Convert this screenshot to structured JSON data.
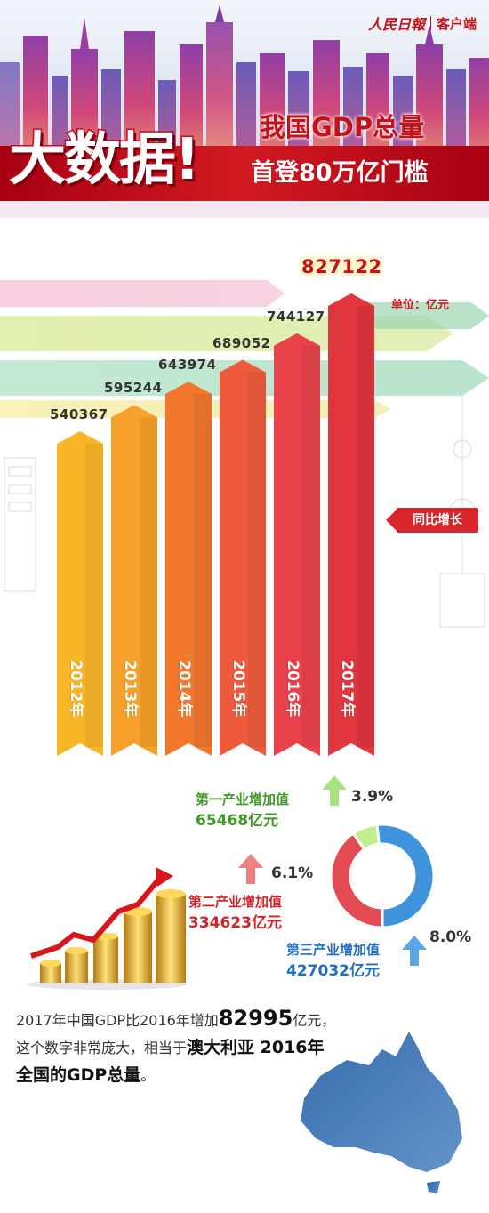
{
  "header": {
    "brand": "人民日報",
    "client": "客户端",
    "big_title": "大数据!",
    "title_line1": "我国GDP总量",
    "title_line2": "首登80万亿门槛"
  },
  "chart_data": {
    "type": "bar",
    "categories": [
      "2012年",
      "2013年",
      "2014年",
      "2015年",
      "2016年",
      "2017年"
    ],
    "values": [
      540367,
      595244,
      643974,
      689052,
      744127,
      827122
    ],
    "unit": "单位：亿元",
    "highlight_index": 5,
    "colors": [
      "#f8b629",
      "#f7a12c",
      "#f1782c",
      "#ee5b3c",
      "#e9424a",
      "#e2363f"
    ]
  },
  "badge": {
    "yoy": "同比增长"
  },
  "industry": {
    "primary": {
      "name": "第一产业增加值",
      "value": "65468亿元",
      "growth": "3.9%",
      "color": "#3f9a27",
      "arrow_color": "#a6e27d",
      "share": 65468
    },
    "secondary": {
      "name": "第二产业增加值",
      "value": "334623亿元",
      "growth": "6.1%",
      "color": "#d2232a",
      "arrow_color": "#ee8080",
      "share": 334623
    },
    "tertiary": {
      "name": "第三产业增加值",
      "value": "427032亿元",
      "growth": "8.0%",
      "color": "#1f6fc2",
      "arrow_color": "#5aa6e8",
      "share": 427032
    },
    "donut_colors": [
      "#bff08a",
      "#e44a52",
      "#3e93dc"
    ]
  },
  "footer": {
    "line1_a": "2017年中国GDP比2016年增加",
    "line1_num": "82995",
    "line1_b": "亿元，",
    "line2_a": "这个数字非常庞大，相当于",
    "line2_bold": "澳大利亚 2016年",
    "line3_bold": "全国的GDP总量",
    "line3_end": "。"
  }
}
